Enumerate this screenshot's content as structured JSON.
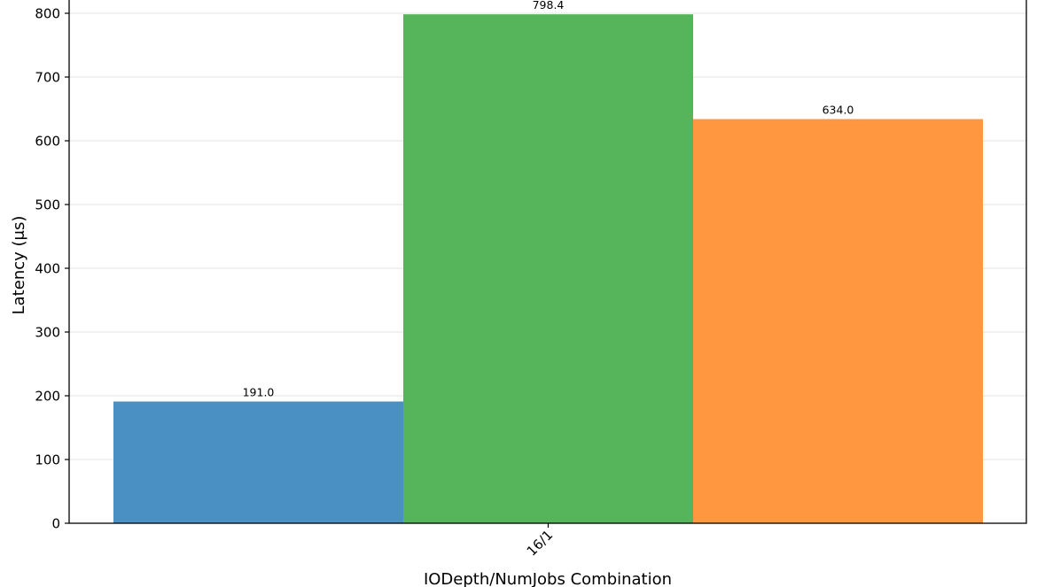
{
  "chart_data": {
    "type": "bar",
    "categories": [
      "16/1"
    ],
    "series": [
      {
        "values": [
          191.0
        ],
        "color": "#4a90c2"
      },
      {
        "values": [
          798.4
        ],
        "color": "#56b45a"
      },
      {
        "values": [
          634.0
        ],
        "color": "#ff9740"
      }
    ],
    "data_labels": [
      "191.0",
      "798.4",
      "634.0"
    ],
    "xlabel": "IODepth/NumJobs Combination",
    "ylabel": "Latency (μs)",
    "ylim": [
      0,
      800
    ],
    "yticks": [
      0,
      100,
      200,
      300,
      400,
      500,
      600,
      700,
      800
    ],
    "grid": true,
    "legend": "none"
  }
}
